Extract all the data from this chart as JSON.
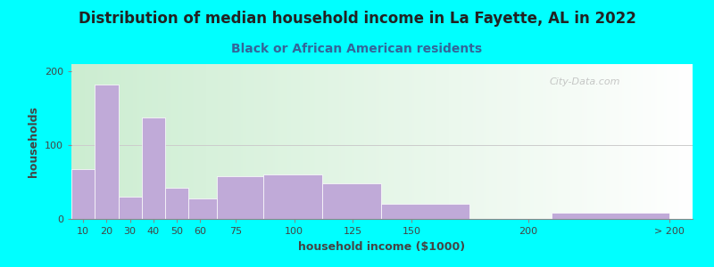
{
  "title": "Distribution of median household income in La Fayette, AL in 2022",
  "subtitle": "Black or African American residents",
  "xlabel": "household income ($1000)",
  "ylabel": "households",
  "bar_labels": [
    "10",
    "20",
    "30",
    "40",
    "50",
    "60",
    "75",
    "100",
    "125",
    "150",
    "200",
    "> 200"
  ],
  "bar_values": [
    68,
    182,
    30,
    138,
    42,
    28,
    58,
    60,
    48,
    20,
    0,
    8
  ],
  "bar_color": "#c0aad8",
  "background_outer": "#00ffff",
  "background_inner_left": "#d4edda",
  "background_inner_right": "#f0fff0",
  "ylim": [
    0,
    210
  ],
  "yticks": [
    0,
    100,
    200
  ],
  "watermark": "City-Data.com",
  "title_fontsize": 12,
  "subtitle_fontsize": 10,
  "axis_label_fontsize": 9,
  "tick_fontsize": 8,
  "title_color": "#222222",
  "subtitle_color": "#336699",
  "label_color": "#444444",
  "gridline_color": "#cccccc",
  "x_starts": [
    5,
    15,
    25,
    35,
    45,
    55,
    67,
    87,
    112,
    137,
    175,
    210
  ],
  "x_ends": [
    15,
    25,
    35,
    45,
    55,
    67,
    87,
    112,
    137,
    175,
    210,
    260
  ],
  "x_tick_pos": [
    10,
    20,
    30,
    40,
    50,
    60,
    75,
    100,
    125,
    150,
    200,
    260
  ],
  "x_lim": [
    5,
    270
  ]
}
